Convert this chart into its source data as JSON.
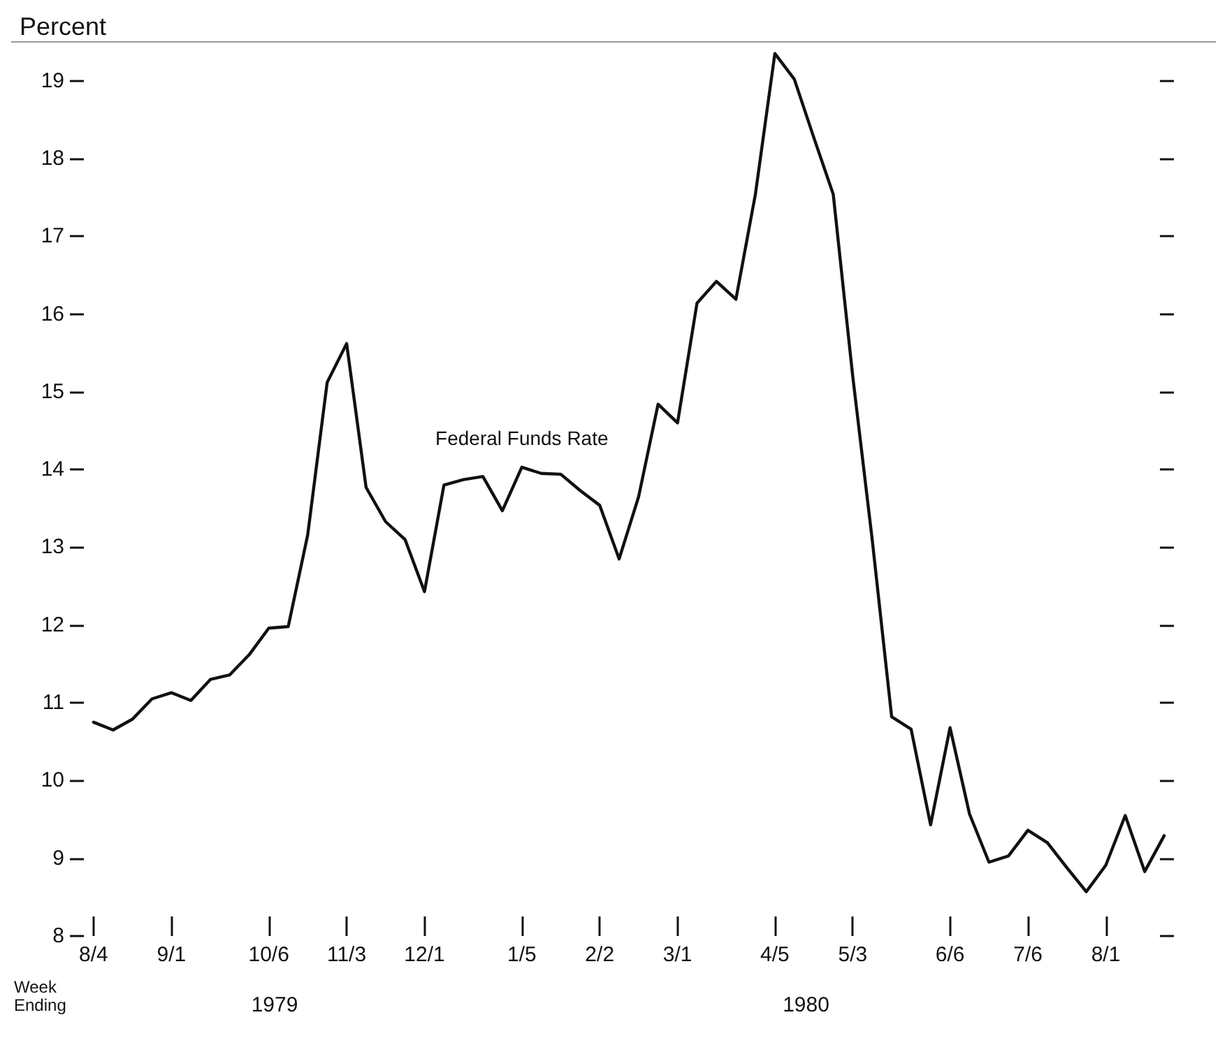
{
  "chart_data": {
    "type": "line",
    "ylabel": "Percent",
    "xlabel": "Week\nEnding",
    "categories": [
      "8/4",
      null,
      null,
      null,
      "9/1",
      null,
      null,
      null,
      null,
      "10/6",
      null,
      null,
      null,
      "11/3",
      null,
      null,
      null,
      "12/1",
      null,
      null,
      null,
      null,
      "1/5",
      null,
      null,
      null,
      "2/2",
      null,
      null,
      null,
      "3/1",
      null,
      null,
      null,
      null,
      "4/5",
      null,
      null,
      null,
      "5/3",
      null,
      null,
      null,
      null,
      "6/6",
      null,
      null,
      null,
      "7/6",
      null,
      null,
      null,
      "8/1",
      null,
      null,
      null
    ],
    "series": [
      {
        "name": "Federal Funds Rate",
        "color": "#111111",
        "values": [
          10.75,
          10.65,
          10.79,
          11.05,
          11.13,
          11.03,
          11.3,
          11.36,
          11.62,
          11.96,
          11.98,
          13.16,
          15.12,
          15.62,
          13.77,
          13.33,
          13.1,
          12.43,
          13.8,
          13.87,
          13.91,
          13.47,
          14.03,
          13.95,
          13.94,
          13.73,
          13.54,
          12.85,
          13.65,
          14.84,
          14.6,
          16.14,
          16.42,
          16.19,
          17.54,
          19.35,
          19.02,
          18.27,
          17.54,
          15.2,
          13.1,
          10.82,
          10.66,
          9.43,
          10.68,
          9.57,
          8.95,
          9.03,
          9.36,
          9.2,
          8.88,
          8.57,
          8.91,
          9.55,
          8.83,
          9.29
        ]
      }
    ],
    "ylim": [
      8,
      19.5
    ],
    "yticks": [
      8,
      9,
      10,
      11,
      12,
      13,
      14,
      15,
      16,
      17,
      18,
      19
    ],
    "annotations": [
      "1979",
      "1980"
    ],
    "grid": false,
    "marker": "none",
    "line_style": "solid"
  }
}
